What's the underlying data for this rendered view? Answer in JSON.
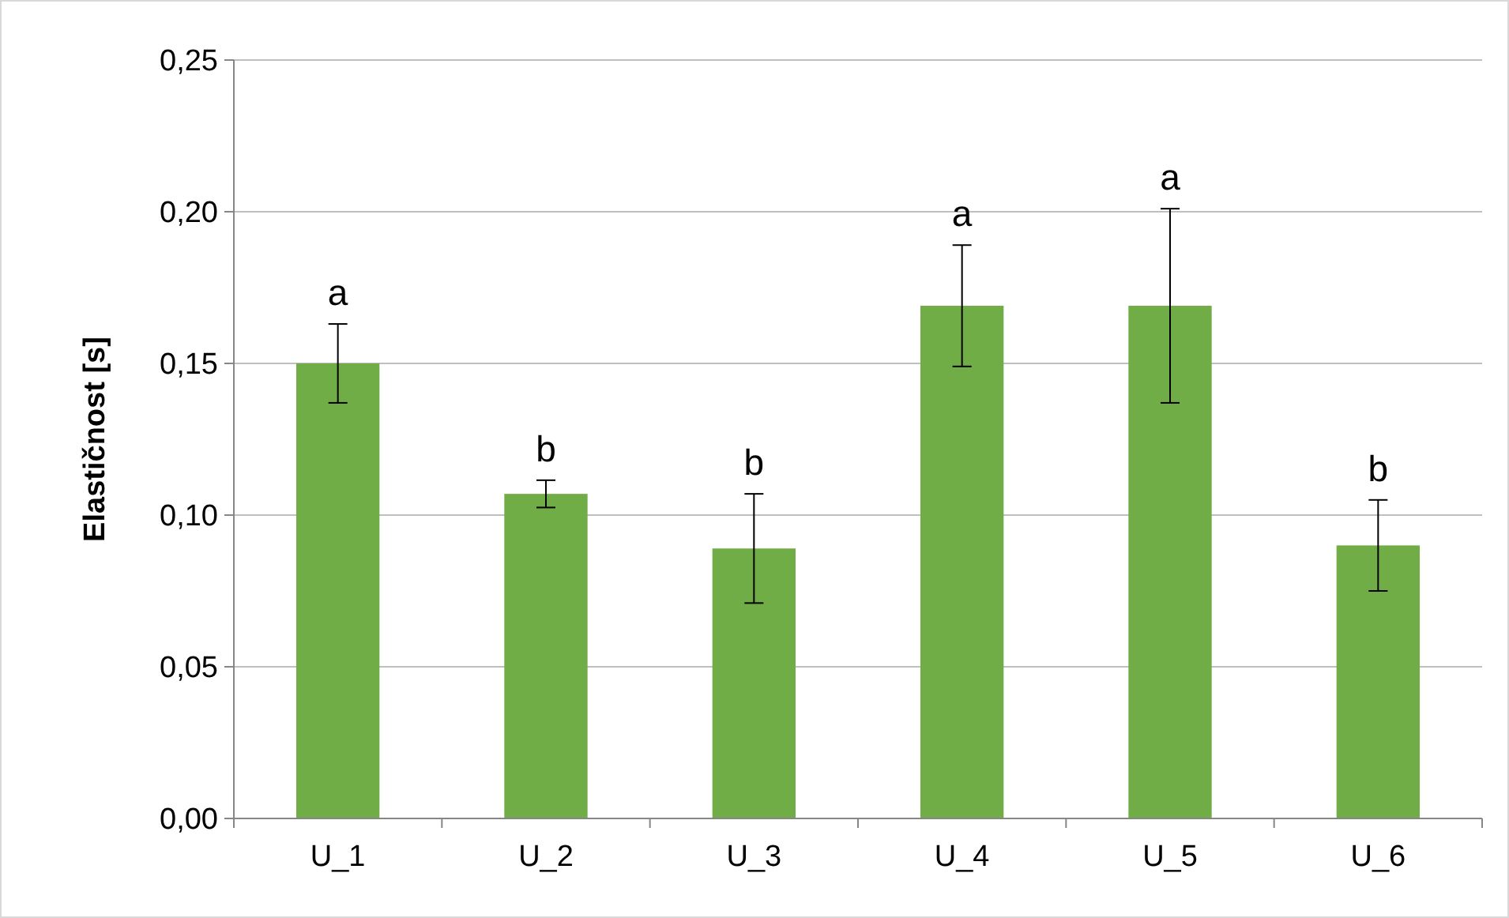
{
  "chart_data": {
    "type": "bar",
    "ylabel": "Elastičnost [s]",
    "categories": [
      "U_1",
      "U_2",
      "U_3",
      "U_4",
      "U_5",
      "U_6"
    ],
    "values": [
      0.15,
      0.107,
      0.089,
      0.169,
      0.169,
      0.09
    ],
    "errors": [
      0.013,
      0.0045,
      0.018,
      0.02,
      0.032,
      0.015
    ],
    "color": "#70ad47",
    "ylim": [
      0,
      0.25
    ],
    "yticks": [
      {
        "value": 0,
        "label": "0,00"
      },
      {
        "value": 0.05,
        "label": "0,05"
      },
      {
        "value": 0.1,
        "label": "0,10"
      },
      {
        "value": 0.15,
        "label": "0,15"
      },
      {
        "value": 0.2,
        "label": "0,20"
      },
      {
        "value": 0.25,
        "label": "0,25"
      }
    ],
    "grid": "y",
    "annotations": [
      {
        "text": "a",
        "x": "U_1",
        "y": 0.163
      },
      {
        "text": "b",
        "x": "U_2",
        "y": 0.1115
      },
      {
        "text": "b",
        "x": "U_3",
        "y": 0.107
      },
      {
        "text": "a",
        "x": "U_4",
        "y": 0.189
      },
      {
        "text": "a",
        "x": "U_5",
        "y": 0.201
      },
      {
        "text": "b",
        "x": "U_6",
        "y": 0.105
      }
    ]
  }
}
